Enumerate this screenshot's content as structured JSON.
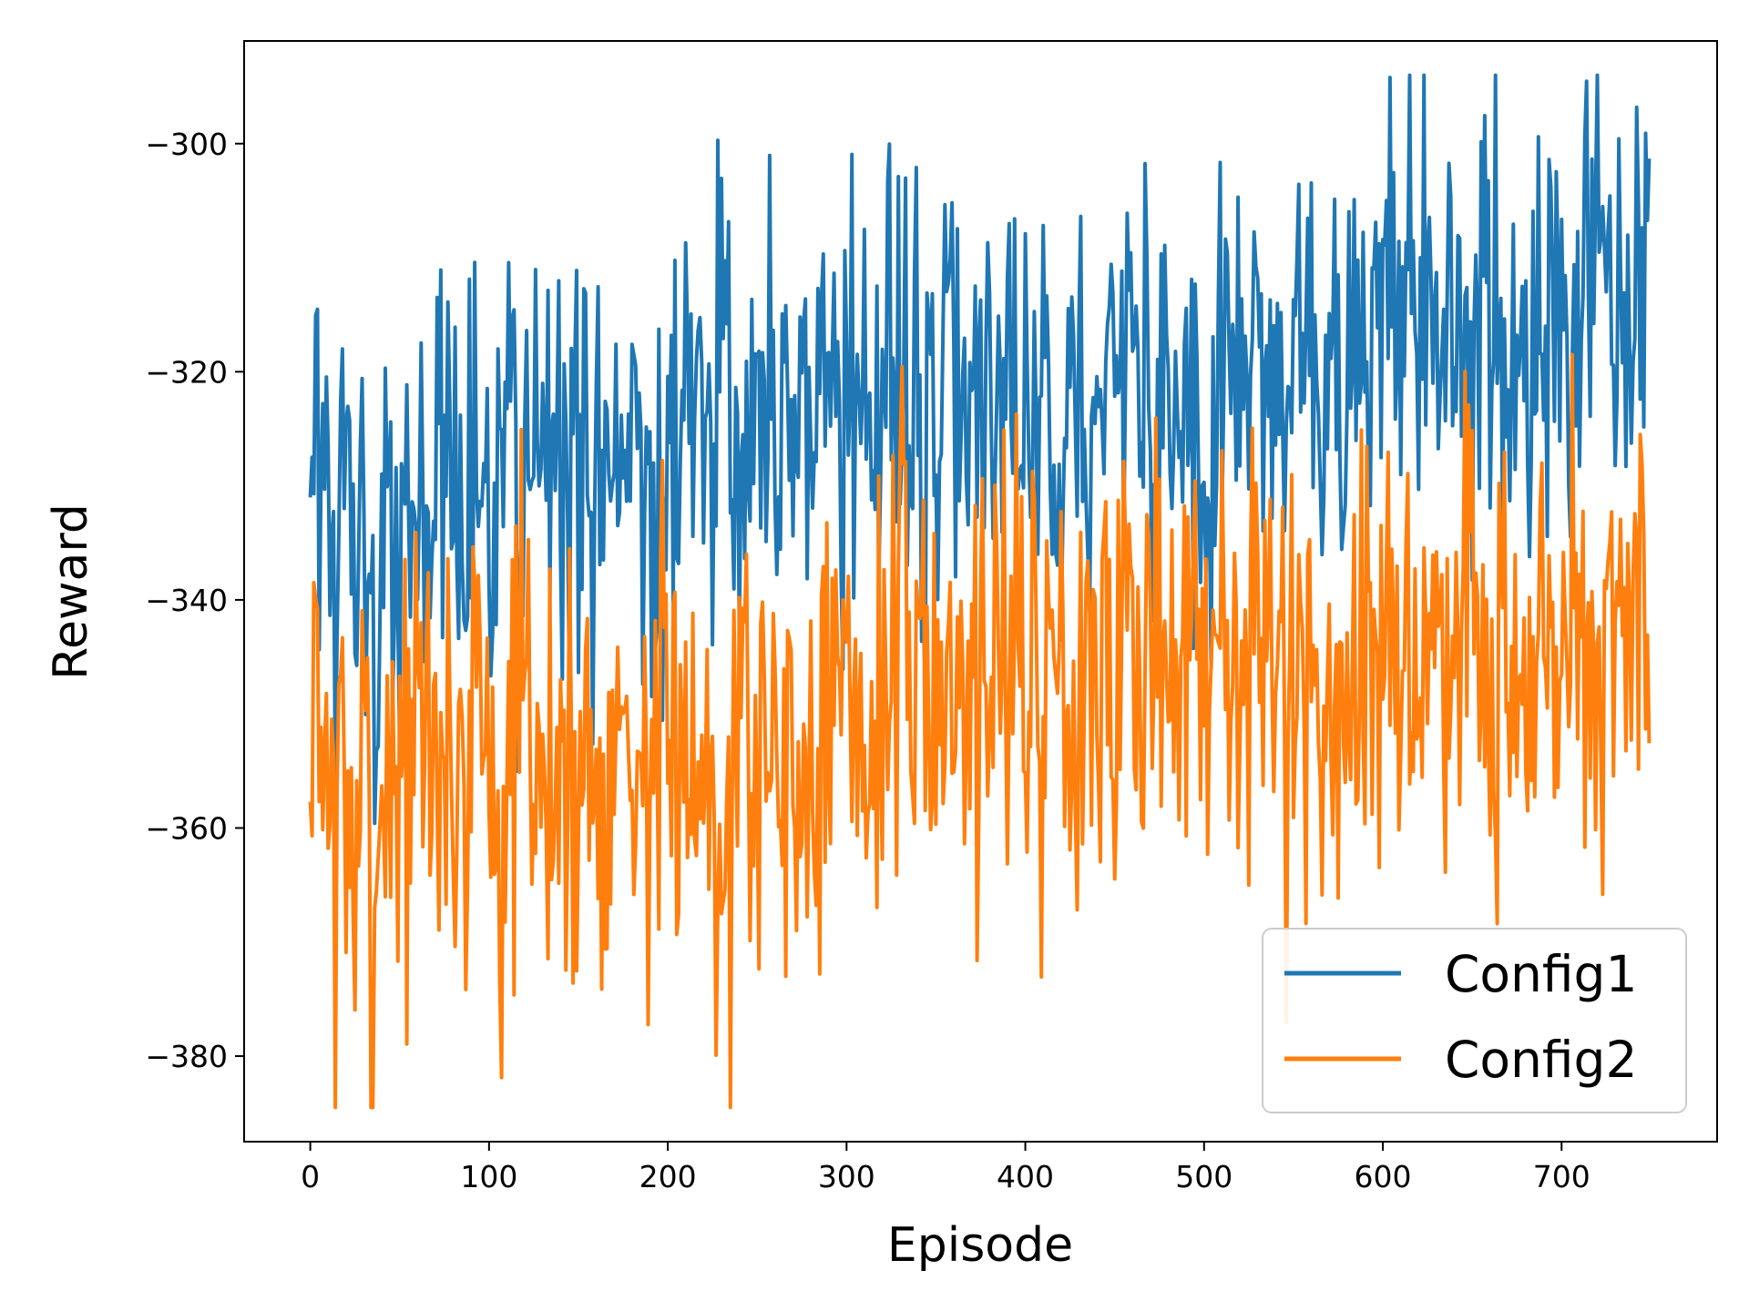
{
  "chart_data": {
    "type": "line",
    "title": "",
    "xlabel": "Episode",
    "ylabel": "Reward",
    "xlim": [
      -37,
      787
    ],
    "ylim": [
      -387.5,
      -291
    ],
    "x_ticks": [
      0,
      100,
      200,
      300,
      400,
      500,
      600,
      700
    ],
    "y_ticks": [
      -380,
      -360,
      -340,
      -320,
      -300
    ],
    "x_tick_labels": [
      "0",
      "100",
      "200",
      "300",
      "400",
      "500",
      "600",
      "700"
    ],
    "y_tick_labels": [
      "−380",
      "−360",
      "−340",
      "−320",
      "−300"
    ],
    "grid": false,
    "legend_position": "lower-right",
    "x_start": 0,
    "x_end": 749,
    "series": [
      {
        "name": "Config1",
        "color": "#1f77b4",
        "anchors_x": [
          0,
          3,
          8,
          14,
          20,
          25,
          30,
          36,
          42,
          48,
          55,
          61,
          67,
          73,
          80,
          86,
          92,
          98,
          105,
          111,
          117,
          123,
          130,
          136,
          142,
          148,
          155,
          161,
          167,
          173,
          180,
          186,
          192,
          198,
          205,
          211,
          217,
          223,
          230,
          236,
          242,
          248,
          255,
          261,
          267,
          273,
          280,
          286,
          292,
          298,
          305,
          311,
          317,
          323,
          330,
          336,
          342,
          348,
          355,
          361,
          367,
          373,
          380,
          386,
          392,
          398,
          405,
          411,
          417,
          423,
          430,
          436,
          442,
          448,
          455,
          461,
          467,
          473,
          480,
          486,
          492,
          498,
          505,
          511,
          517,
          523,
          530,
          536,
          542,
          548,
          555,
          561,
          567,
          573,
          580,
          586,
          592,
          598,
          603,
          608,
          614,
          620,
          626,
          632,
          638,
          644,
          650,
          656,
          662,
          668,
          674,
          680,
          686,
          692,
          698,
          704,
          710,
          716,
          722,
          728,
          734,
          740,
          742,
          746,
          749
        ],
        "anchors_y": [
          -324,
          -318,
          -334,
          -343,
          -329,
          -338,
          -335,
          -346,
          -331,
          -339,
          -330,
          -336,
          -337,
          -328,
          -334,
          -338,
          -325,
          -333,
          -336,
          -322,
          -338,
          -331,
          -330,
          -328,
          -335,
          -321,
          -328,
          -332,
          -330,
          -323,
          -328,
          -326,
          -334,
          -324,
          -329,
          -317,
          -330,
          -327,
          -322,
          -325,
          -329,
          -324,
          -320,
          -327,
          -324,
          -326,
          -319,
          -325,
          -315,
          -327,
          -321,
          -322,
          -326,
          -315,
          -324,
          -320,
          -323,
          -327,
          -317,
          -325,
          -329,
          -322,
          -318,
          -325,
          -320,
          -321,
          -324,
          -319,
          -330,
          -322,
          -317,
          -327,
          -320,
          -318,
          -322,
          -315,
          -318,
          -324,
          -320,
          -322,
          -315,
          -328,
          -322,
          -319,
          -317,
          -312,
          -320,
          -321,
          -324,
          -320,
          -316,
          -313,
          -318,
          -321,
          -322,
          -315,
          -319,
          -315,
          -310,
          -315,
          -308,
          -318,
          -312,
          -318,
          -316,
          -320,
          -321,
          -318,
          -314,
          -320,
          -317,
          -324,
          -318,
          -320,
          -312,
          -319,
          -314,
          -310,
          -313,
          -315,
          -318,
          -312,
          -296,
          -320,
          -305
        ],
        "noise": 9,
        "seed": 1
      },
      {
        "name": "Config2",
        "color": "#ff7f0e",
        "anchors_x": [
          0,
          3,
          8,
          14,
          20,
          25,
          30,
          36,
          42,
          48,
          55,
          61,
          67,
          73,
          80,
          86,
          92,
          98,
          105,
          111,
          117,
          123,
          130,
          136,
          142,
          148,
          155,
          161,
          167,
          173,
          180,
          186,
          192,
          198,
          205,
          211,
          217,
          223,
          230,
          236,
          242,
          248,
          255,
          261,
          267,
          273,
          280,
          286,
          292,
          298,
          305,
          311,
          317,
          323,
          330,
          336,
          342,
          348,
          355,
          361,
          367,
          373,
          380,
          386,
          392,
          398,
          405,
          411,
          417,
          423,
          430,
          436,
          442,
          448,
          455,
          461,
          467,
          473,
          480,
          486,
          492,
          498,
          505,
          511,
          517,
          523,
          530,
          536,
          542,
          548,
          555,
          561,
          567,
          573,
          580,
          586,
          592,
          598,
          603,
          608,
          614,
          620,
          626,
          632,
          638,
          644,
          650,
          656,
          662,
          668,
          674,
          680,
          686,
          692,
          698,
          704,
          710,
          716,
          722,
          728,
          734,
          740,
          742,
          746,
          749
        ],
        "anchors_y": [
          -363,
          -342,
          -353,
          -360,
          -352,
          -365,
          -356,
          -362,
          -356,
          -351,
          -356,
          -354,
          -349,
          -357,
          -352,
          -357,
          -348,
          -352,
          -356,
          -360,
          -352,
          -352,
          -356,
          -357,
          -351,
          -359,
          -353,
          -352,
          -358,
          -351,
          -351,
          -357,
          -355,
          -352,
          -354,
          -351,
          -358,
          -350,
          -358,
          -350,
          -349,
          -356,
          -349,
          -351,
          -350,
          -353,
          -355,
          -347,
          -349,
          -352,
          -347,
          -351,
          -352,
          -345,
          -344,
          -350,
          -345,
          -348,
          -346,
          -344,
          -350,
          -346,
          -342,
          -342,
          -347,
          -343,
          -347,
          -344,
          -345,
          -346,
          -343,
          -342,
          -347,
          -346,
          -341,
          -348,
          -344,
          -345,
          -346,
          -344,
          -342,
          -347,
          -348,
          -340,
          -344,
          -342,
          -346,
          -343,
          -348,
          -343,
          -345,
          -345,
          -349,
          -348,
          -343,
          -341,
          -344,
          -345,
          -346,
          -348,
          -344,
          -343,
          -345,
          -346,
          -344,
          -345,
          -341,
          -344,
          -346,
          -340,
          -344,
          -343,
          -347,
          -344,
          -343,
          -342,
          -346,
          -348,
          -343,
          -345,
          -345,
          -343,
          -342,
          -340,
          -346
        ],
        "noise": 10,
        "seed": 7
      }
    ]
  }
}
